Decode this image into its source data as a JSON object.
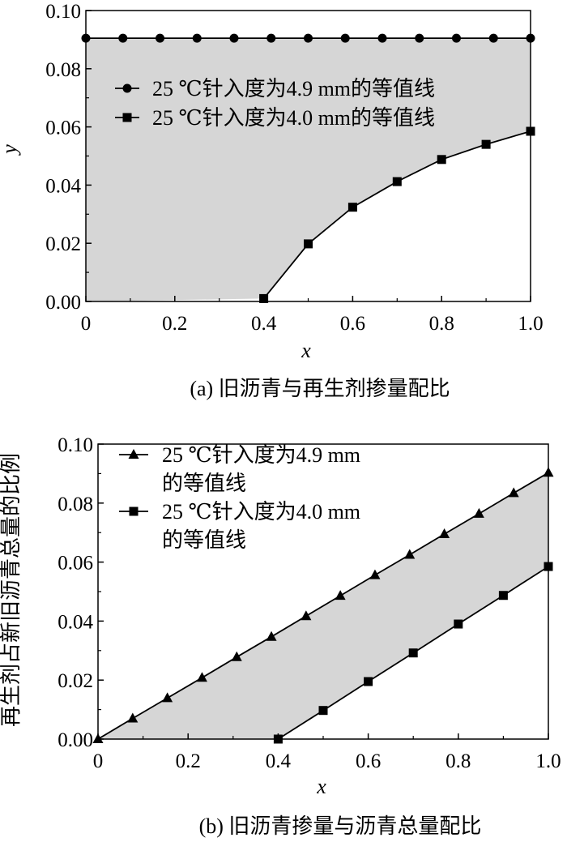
{
  "chart_data": [
    {
      "type": "line",
      "caption": "(a) 旧沥青与再生剂掺量配比",
      "xlabel": "x",
      "ylabel": "y",
      "xlim": [
        0,
        1.0
      ],
      "ylim": [
        0,
        0.1
      ],
      "x_ticks": [
        "0",
        "0.2",
        "0.4",
        "0.6",
        "0.8",
        "1.0"
      ],
      "y_ticks": [
        "0.00",
        "0.02",
        "0.04",
        "0.06",
        "0.08",
        "0.10"
      ],
      "legend_position": "top",
      "shaded_region": "between series",
      "series": [
        {
          "name": "25 ℃针入度为4.9 mm的等值线",
          "marker": "circle",
          "x": [
            0,
            0.0833,
            0.1667,
            0.25,
            0.3333,
            0.4167,
            0.5,
            0.5833,
            0.6667,
            0.75,
            0.8333,
            0.9167,
            1.0
          ],
          "y": [
            0.0905,
            0.0905,
            0.0905,
            0.0905,
            0.0905,
            0.0905,
            0.0905,
            0.0905,
            0.0905,
            0.0905,
            0.0905,
            0.0905,
            0.0905
          ]
        },
        {
          "name": "25 ℃针入度为4.0 mm的等值线",
          "marker": "square",
          "x": [
            0.4,
            0.5,
            0.6,
            0.7,
            0.8,
            0.9,
            1.0
          ],
          "y": [
            0.001,
            0.0198,
            0.0324,
            0.0412,
            0.0488,
            0.054,
            0.0585
          ]
        }
      ]
    },
    {
      "type": "line",
      "caption": "(b) 旧沥青掺量与沥青总量配比",
      "xlabel": "x",
      "ylabel": "再生剂占新旧沥青总量的比例",
      "xlim": [
        0,
        1.0
      ],
      "ylim": [
        0,
        0.1
      ],
      "x_ticks": [
        "0",
        "0.2",
        "0.4",
        "0.6",
        "0.8",
        "1.0"
      ],
      "y_ticks": [
        "0.00",
        "0.02",
        "0.04",
        "0.06",
        "0.08",
        "0.10"
      ],
      "legend_position": "top-left",
      "shaded_region": "between series",
      "series": [
        {
          "name": "25 ℃针入度为4.9 mm",
          "name_line2": "的等值线",
          "marker": "triangle",
          "x": [
            0,
            0.077,
            0.154,
            0.231,
            0.308,
            0.385,
            0.462,
            0.538,
            0.615,
            0.692,
            0.769,
            0.846,
            0.923,
            1.0
          ],
          "y": [
            0,
            0.007,
            0.0139,
            0.0208,
            0.0278,
            0.0347,
            0.0417,
            0.0486,
            0.0556,
            0.0625,
            0.0695,
            0.0764,
            0.0834,
            0.0903
          ]
        },
        {
          "name": "25 ℃针入度为4.0 mm",
          "name_line2": "的等值线",
          "marker": "square",
          "x": [
            0.4,
            0.5,
            0.6,
            0.7,
            0.8,
            0.9,
            1.0
          ],
          "y": [
            0,
            0.0097,
            0.0195,
            0.0292,
            0.039,
            0.0487,
            0.0585
          ]
        }
      ]
    }
  ]
}
